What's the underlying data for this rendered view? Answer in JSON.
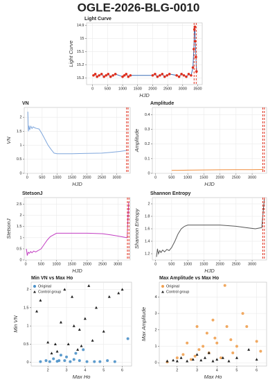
{
  "title": "OGLE-2026-BLG-0010",
  "chart_data": [
    {
      "type": "line",
      "title": "Light Curve",
      "xlabel": "HJD",
      "ylabel": "Light Curve",
      "xlim": [
        -200,
        3650
      ],
      "ylim": [
        15.35,
        14.88
      ],
      "xticks": [
        0,
        500,
        1000,
        1500,
        2000,
        2500,
        3000,
        3500
      ],
      "yticks": [
        14.9,
        15,
        15.1,
        15.2,
        15.3
      ],
      "grid": true,
      "markers": true,
      "series": [
        {
          "color": "#3b6fb6",
          "marker_color": "#e0301e",
          "x": [
            30,
            90,
            150,
            220,
            300,
            380,
            450,
            520,
            600,
            680,
            760,
            1000,
            1060,
            1120,
            1190,
            1260,
            2000,
            2080,
            2160,
            2240,
            2320,
            2400,
            2480,
            2560,
            2800,
            2880,
            2960,
            3040,
            3120,
            3200,
            3280,
            3340,
            3370,
            3390,
            3405,
            3420,
            3440,
            3460
          ],
          "values": [
            15.28,
            15.27,
            15.29,
            15.28,
            15.27,
            15.29,
            15.28,
            15.27,
            15.29,
            15.28,
            15.27,
            15.29,
            15.28,
            15.27,
            15.29,
            15.28,
            15.28,
            15.27,
            15.29,
            15.28,
            15.27,
            15.29,
            15.28,
            15.27,
            15.28,
            15.29,
            15.27,
            15.28,
            15.29,
            15.27,
            15.28,
            15.22,
            15.08,
            14.93,
            14.91,
            15.02,
            15.14,
            15.25
          ]
        }
      ],
      "vlines": [
        3380,
        3450
      ],
      "vline_color": "#e0301e"
    },
    {
      "type": "line",
      "title": "VN",
      "xlabel": "HJD",
      "ylabel": "VN",
      "xlim": [
        -100,
        3450
      ],
      "ylim": [
        0,
        2.35
      ],
      "xticks": [
        0,
        500,
        1000,
        1500,
        2000,
        2500,
        3000
      ],
      "yticks": [
        0,
        0.5,
        1,
        1.5,
        2
      ],
      "grid": true,
      "series": [
        {
          "color": "#7ea6dc",
          "x": [
            20,
            40,
            60,
            80,
            120,
            160,
            200,
            260,
            320,
            400,
            500,
            600,
            700,
            800,
            900,
            1000,
            1500,
            2000,
            2500,
            2800,
            3100,
            3350
          ],
          "values": [
            2.2,
            1.5,
            1.7,
            1.55,
            1.68,
            1.6,
            1.66,
            1.62,
            1.6,
            1.58,
            1.4,
            1.2,
            1.0,
            0.85,
            0.72,
            0.7,
            0.7,
            0.71,
            0.72,
            0.75,
            0.78,
            0.82
          ]
        }
      ],
      "vlines": [
        3330,
        3380
      ],
      "vline_color": "#e0301e"
    },
    {
      "type": "line",
      "title": "Amplitude",
      "xlabel": "HJD",
      "ylabel": "Amplitude",
      "xlim": [
        -100,
        3450
      ],
      "ylim": [
        0,
        0.45
      ],
      "xticks": [
        0,
        500,
        1000,
        1500,
        2000,
        2500,
        3000
      ],
      "yticks": [
        0,
        0.1,
        0.2,
        0.3,
        0.4
      ],
      "grid": true,
      "series": [
        {
          "color": "#f08c3a",
          "x": [
            500,
            1000,
            1500,
            2000,
            2500,
            3000,
            3350
          ],
          "values": [
            0.02,
            0.022,
            0.023,
            0.024,
            0.025,
            0.025,
            0.026
          ]
        }
      ],
      "vlines": [
        3330,
        3380
      ],
      "vline_color": "#e0301e"
    },
    {
      "type": "line",
      "title": "StetsonJ",
      "xlabel": "HJD",
      "ylabel": "StetsonJ",
      "xlim": [
        -50,
        3400
      ],
      "ylim": [
        0,
        2.8
      ],
      "xticks": [
        0,
        500,
        1000,
        1500,
        2000,
        2500,
        3000
      ],
      "yticks": [
        0,
        0.5,
        1,
        1.5,
        2,
        2.5
      ],
      "grid": true,
      "series": [
        {
          "color": "#c23dc2",
          "x": [
            20,
            50,
            80,
            120,
            160,
            200,
            260,
            320,
            400,
            500,
            600,
            700,
            800,
            1000,
            1500,
            2000,
            2500,
            2800,
            3100,
            3300,
            3350
          ],
          "values": [
            0.5,
            0.2,
            0.35,
            0.3,
            0.38,
            0.32,
            0.4,
            0.36,
            0.42,
            0.5,
            0.7,
            0.9,
            1.05,
            1.2,
            1.2,
            1.2,
            1.18,
            1.12,
            1.05,
            1.0,
            2.6
          ]
        }
      ],
      "vlines": [
        3310,
        3360
      ],
      "vline_color": "#e0301e"
    },
    {
      "type": "line",
      "title": "Shannon Entropy",
      "xlabel": "HJD",
      "ylabel": "Shannon Entropy",
      "xlim": [
        -100,
        3450
      ],
      "ylim": [
        1.1,
        2.1
      ],
      "xticks": [
        0,
        500,
        1000,
        1500,
        2000,
        2500,
        3000
      ],
      "yticks": [
        1.2,
        1.4,
        1.6,
        1.8,
        2
      ],
      "grid": true,
      "series": [
        {
          "color": "#555555",
          "x": [
            30,
            60,
            90,
            130,
            170,
            220,
            280,
            350,
            420,
            500,
            600,
            700,
            800,
            900,
            1000,
            1500,
            2000,
            2500,
            2800,
            3100,
            3300,
            3380
          ],
          "values": [
            1.15,
            1.28,
            1.2,
            1.25,
            1.22,
            1.26,
            1.23,
            1.27,
            1.25,
            1.3,
            1.4,
            1.52,
            1.6,
            1.64,
            1.66,
            1.66,
            1.66,
            1.64,
            1.62,
            1.6,
            1.62,
            2.08
          ]
        }
      ],
      "vlines": [
        3330,
        3380
      ],
      "vline_color": "#e0301e"
    },
    {
      "type": "scatter",
      "title": "Min VN vs Max Ho",
      "xlabel": "Max Ho",
      "ylabel": "Min VN",
      "xlim": [
        1.1,
        6.5
      ],
      "ylim": [
        -0.1,
        2.2
      ],
      "xticks": [
        2,
        3,
        4,
        5,
        6
      ],
      "yticks": [
        0,
        0.5,
        1,
        1.5,
        2
      ],
      "grid": true,
      "legend": "upper left",
      "series": [
        {
          "name": "Original",
          "color": "#4a90c8",
          "marker": "circle",
          "x": [
            1.6,
            1.9,
            2.1,
            2.3,
            2.5,
            2.6,
            2.7,
            2.9,
            3.0,
            3.2,
            3.4,
            3.5,
            3.7,
            3.9,
            4.1,
            4.5,
            4.8,
            5.2,
            5.6,
            6.3
          ],
          "values": [
            0.02,
            0.05,
            0.02,
            0.1,
            0.03,
            0.05,
            0.2,
            0.05,
            0.15,
            0.02,
            0.08,
            0.25,
            0.05,
            0.35,
            0.02,
            0.02,
            0.02,
            0.05,
            0.02,
            0.65
          ]
        },
        {
          "name": "Control group",
          "color": "#222222",
          "marker": "triangle",
          "x": [
            1.4,
            1.6,
            2.0,
            2.2,
            2.4,
            2.5,
            2.7,
            2.9,
            3.1,
            3.3,
            3.4,
            3.6,
            3.7,
            3.8,
            4.0,
            4.2,
            4.4,
            4.6,
            5.0,
            5.3,
            5.8,
            6.0
          ],
          "values": [
            1.4,
            1.7,
            0.55,
            0.25,
            0.5,
            0.3,
            1.1,
            2.0,
            0.5,
            1.8,
            1.0,
            0.35,
            0.9,
            0.45,
            1.2,
            2.1,
            0.6,
            1.5,
            0.85,
            1.8,
            1.9,
            2.0
          ]
        }
      ]
    },
    {
      "type": "scatter",
      "title": "Max Amplitude vs Max Ho",
      "xlabel": "Max Ho",
      "ylabel": "Max Amplitude",
      "xlim": [
        1.1,
        6.5
      ],
      "ylim": [
        -0.2,
        4.9
      ],
      "xticks": [
        2,
        3,
        4,
        5,
        6
      ],
      "yticks": [
        0,
        1,
        2,
        3,
        4
      ],
      "grid": true,
      "legend": "upper left",
      "series": [
        {
          "name": "Original",
          "color": "#f0a050",
          "marker": "circle",
          "x": [
            1.5,
            2.0,
            2.3,
            2.5,
            2.7,
            2.9,
            3.0,
            3.1,
            3.3,
            3.5,
            3.6,
            3.8,
            3.9,
            4.0,
            4.2,
            4.4,
            4.5,
            4.7,
            4.8,
            5.0,
            5.3,
            5.5,
            6.0,
            6.2
          ],
          "values": [
            0.05,
            0.3,
            0.5,
            1.2,
            0.2,
            0.4,
            2.2,
            0.8,
            1.0,
            1.8,
            0.6,
            2.6,
            1.5,
            1.2,
            0.3,
            4.7,
            2.2,
            1.4,
            0.6,
            1.0,
            3.0,
            2.2,
            1.3,
            0.7
          ]
        },
        {
          "name": "Control group",
          "color": "#222222",
          "marker": "triangle",
          "x": [
            1.5,
            1.8,
            2.0,
            2.2,
            2.5,
            2.8,
            3.0,
            3.2,
            3.4,
            3.6,
            3.8,
            4.0,
            4.3,
            4.6,
            5.0,
            5.6,
            6.0
          ],
          "values": [
            0.1,
            0.15,
            0.1,
            0.3,
            0.1,
            0.2,
            0.5,
            0.15,
            0.3,
            0.6,
            0.1,
            0.2,
            0.3,
            0.1,
            0.3,
            0.8,
            0.2
          ]
        }
      ]
    }
  ]
}
